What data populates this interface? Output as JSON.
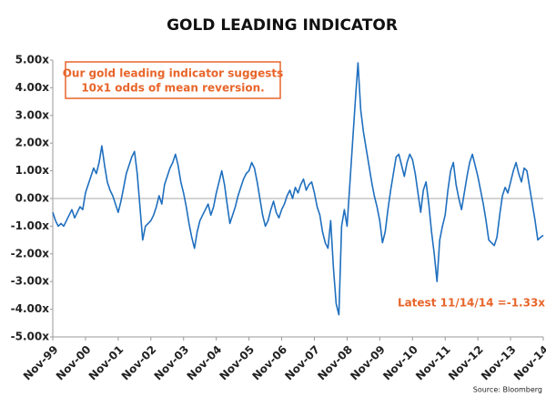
{
  "chart_data": {
    "type": "line",
    "title": "GOLD LEADING INDICATOR",
    "categories": [
      "Nov-99",
      null,
      null,
      null,
      null,
      null,
      null,
      null,
      null,
      null,
      null,
      null,
      "Nov-00",
      null,
      null,
      null,
      null,
      null,
      null,
      null,
      null,
      null,
      null,
      null,
      "Nov-01",
      null,
      null,
      null,
      null,
      null,
      null,
      null,
      null,
      null,
      null,
      null,
      "Nov-02",
      null,
      null,
      null,
      null,
      null,
      null,
      null,
      null,
      null,
      null,
      null,
      "Nov-03",
      null,
      null,
      null,
      null,
      null,
      null,
      null,
      null,
      null,
      null,
      null,
      "Nov-04",
      null,
      null,
      null,
      null,
      null,
      null,
      null,
      null,
      null,
      null,
      null,
      "Nov-05",
      null,
      null,
      null,
      null,
      null,
      null,
      null,
      null,
      null,
      null,
      null,
      "Nov-06",
      null,
      null,
      null,
      null,
      null,
      null,
      null,
      null,
      null,
      null,
      null,
      "Nov-07",
      null,
      null,
      null,
      null,
      null,
      null,
      null,
      null,
      null,
      null,
      null,
      "Nov-08",
      null,
      null,
      null,
      null,
      null,
      null,
      null,
      null,
      null,
      null,
      null,
      "Nov-09",
      null,
      null,
      null,
      null,
      null,
      null,
      null,
      null,
      null,
      null,
      null,
      "Nov-10",
      null,
      null,
      null,
      null,
      null,
      null,
      null,
      null,
      null,
      null,
      null,
      "Nov-11",
      null,
      null,
      null,
      null,
      null,
      null,
      null,
      null,
      null,
      null,
      null,
      "Nov-12",
      null,
      null,
      null,
      null,
      null,
      null,
      null,
      null,
      null,
      null,
      null,
      "Nov-13",
      null,
      null,
      null,
      null,
      null,
      null,
      null,
      null,
      null,
      null,
      null,
      "Nov-14"
    ],
    "values": [
      -0.5,
      -0.8,
      -1.0,
      -0.9,
      -1.0,
      -0.8,
      -0.6,
      -0.4,
      -0.7,
      -0.5,
      -0.3,
      -0.4,
      0.2,
      0.5,
      0.8,
      1.1,
      0.9,
      1.3,
      1.9,
      1.2,
      0.6,
      0.3,
      0.1,
      -0.2,
      -0.5,
      -0.1,
      0.4,
      0.9,
      1.2,
      1.5,
      1.7,
      0.9,
      -0.3,
      -1.5,
      -1.0,
      -0.9,
      -0.8,
      -0.6,
      -0.3,
      0.1,
      -0.2,
      0.5,
      0.8,
      1.1,
      1.3,
      1.6,
      1.2,
      0.6,
      0.2,
      -0.3,
      -0.9,
      -1.4,
      -1.8,
      -1.2,
      -0.8,
      -0.6,
      -0.4,
      -0.2,
      -0.6,
      -0.3,
      0.2,
      0.6,
      1.0,
      0.5,
      -0.2,
      -0.9,
      -0.6,
      -0.3,
      0.1,
      0.4,
      0.7,
      0.9,
      1.0,
      1.3,
      1.1,
      0.6,
      0.0,
      -0.6,
      -1.0,
      -0.8,
      -0.4,
      -0.1,
      -0.5,
      -0.7,
      -0.4,
      -0.2,
      0.1,
      0.3,
      0.0,
      0.4,
      0.2,
      0.5,
      0.7,
      0.3,
      0.5,
      0.6,
      0.2,
      -0.3,
      -0.6,
      -1.2,
      -1.6,
      -1.8,
      -0.8,
      -2.5,
      -3.8,
      -4.2,
      -1.0,
      -0.4,
      -1.0,
      0.5,
      2.0,
      3.5,
      4.9,
      3.2,
      2.4,
      1.8,
      1.2,
      0.6,
      0.1,
      -0.3,
      -0.8,
      -1.6,
      -1.2,
      -0.4,
      0.3,
      0.9,
      1.5,
      1.6,
      1.2,
      0.8,
      1.3,
      1.6,
      1.4,
      0.9,
      0.2,
      -0.5,
      0.3,
      0.6,
      -0.2,
      -1.2,
      -2.0,
      -3.0,
      -1.5,
      -1.0,
      -0.6,
      0.3,
      1.0,
      1.3,
      0.5,
      0.0,
      -0.4,
      0.2,
      0.8,
      1.3,
      1.6,
      1.2,
      0.8,
      0.3,
      -0.2,
      -0.8,
      -1.5,
      -1.6,
      -1.7,
      -1.4,
      -0.6,
      0.1,
      0.4,
      0.2,
      0.6,
      1.0,
      1.3,
      0.9,
      0.6,
      1.1,
      1.0,
      0.4,
      -0.2,
      -0.8,
      -1.5,
      -1.4,
      -1.33
    ],
    "color": "#1f6fbf",
    "ylim": [
      -5,
      5
    ],
    "yticks": [
      {
        "value": -5,
        "label": "-5.00x"
      },
      {
        "value": -4,
        "label": "-4.00x"
      },
      {
        "value": -3,
        "label": "-3.00x"
      },
      {
        "value": -2,
        "label": "-2.00x"
      },
      {
        "value": -1,
        "label": "-1.00x"
      },
      {
        "value": 0,
        "label": "0.00x"
      },
      {
        "value": 1,
        "label": "1.00x"
      },
      {
        "value": 2,
        "label": "2.00x"
      },
      {
        "value": 3,
        "label": "3.00x"
      },
      {
        "value": 4,
        "label": "4.00x"
      },
      {
        "value": 5,
        "label": "5.00x"
      }
    ],
    "annotations": [
      "Our gold leading indicator suggests",
      "10x1 odds of mean reversion.",
      "Latest 11/14/14 =-1.33x"
    ],
    "source": "Source: Bloomberg"
  }
}
